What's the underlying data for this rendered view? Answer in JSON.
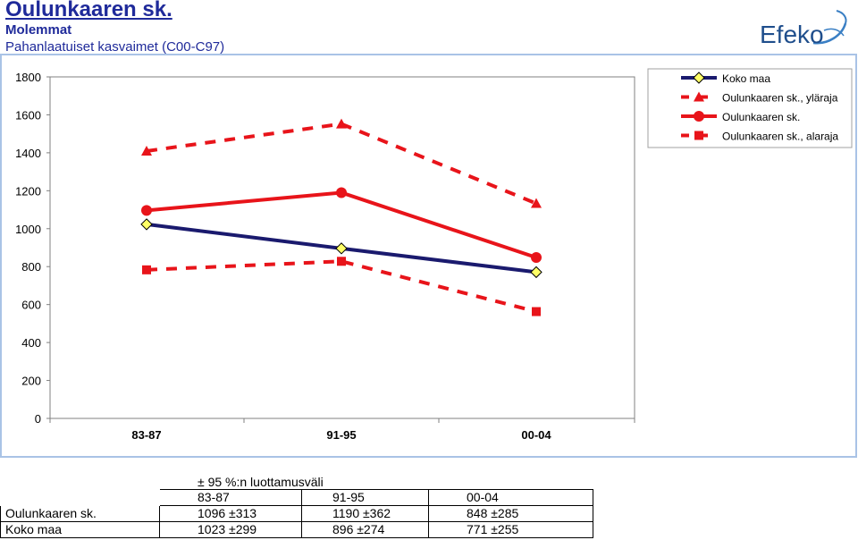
{
  "header": {
    "title": "Oulunkaaren sk.",
    "subtitle1": "Molemmat",
    "subtitle2": "Pahanlaatuiset kasvaimet (C00-C97)",
    "logo_text": "Efeko"
  },
  "chart_data": {
    "type": "line",
    "categories": [
      "83-87",
      "91-95",
      "00-04"
    ],
    "ylim": [
      0,
      1800
    ],
    "yticks": [
      0,
      200,
      400,
      600,
      800,
      1000,
      1200,
      1400,
      1600,
      1800
    ],
    "legend_position": "top-right",
    "grid": false,
    "series": [
      {
        "name": "Koko maa",
        "values": [
          1023,
          896,
          771
        ],
        "color": "#1a1a6e",
        "dash": false,
        "marker": "diamond",
        "marker_fill": "#ffff66"
      },
      {
        "name": "Oulunkaaren sk., yläraja",
        "values": [
          1409,
          1552,
          1133
        ],
        "color": "#e8141a",
        "dash": true,
        "marker": "triangle",
        "marker_fill": "#e8141a"
      },
      {
        "name": "Oulunkaaren sk.",
        "values": [
          1096,
          1190,
          848
        ],
        "color": "#e8141a",
        "dash": false,
        "marker": "circle",
        "marker_fill": "#e8141a"
      },
      {
        "name": "Oulunkaaren sk., alaraja",
        "values": [
          783,
          828,
          563
        ],
        "color": "#e8141a",
        "dash": true,
        "marker": "square",
        "marker_fill": "#e8141a"
      }
    ],
    "plot_background": "#ffffff",
    "panel_border": "#a9c3e6"
  },
  "table": {
    "caption": "± 95 %:n luottamusväli",
    "headers": [
      "83-87",
      "91-95",
      "00-04"
    ],
    "rows": [
      {
        "label": "Oulunkaaren sk.",
        "cells": [
          "1096 ±313",
          "1190 ±362",
          "848 ±285"
        ]
      },
      {
        "label": "Koko maa",
        "cells": [
          "1023 ±299",
          "896 ±274",
          "771 ±255"
        ]
      }
    ]
  }
}
